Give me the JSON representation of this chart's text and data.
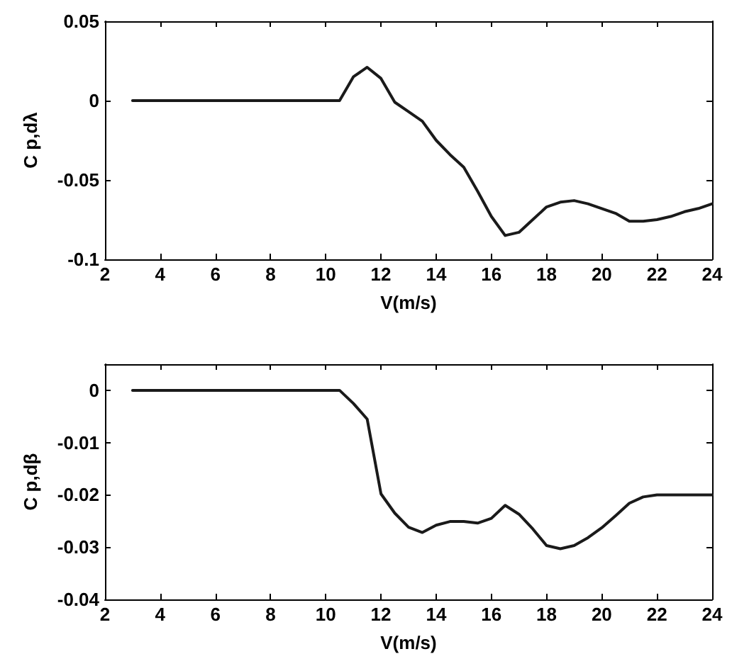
{
  "chart_data": [
    {
      "type": "line",
      "xlabel": "V(m/s)",
      "ylabel": "C p,dλ",
      "xlim": [
        2,
        24
      ],
      "xticks": [
        2,
        4,
        6,
        8,
        10,
        12,
        14,
        16,
        18,
        20,
        22,
        24
      ],
      "ylim": [
        -0.1,
        0.05
      ],
      "yticks": [
        -0.1,
        -0.05,
        0,
        0.05
      ],
      "grid": false,
      "marker": "none",
      "line_style": "solid",
      "x": [
        3,
        3.5,
        4,
        4.5,
        5,
        5.5,
        6,
        6.5,
        7,
        7.5,
        8,
        8.5,
        9,
        9.5,
        10,
        10.5,
        11,
        11.5,
        12,
        12.5,
        13,
        13.5,
        14,
        14.5,
        15,
        15.5,
        16,
        16.5,
        17,
        17.5,
        18,
        18.5,
        19,
        19.5,
        20,
        20.5,
        21,
        21.5,
        22,
        22.5,
        23,
        23.5,
        24
      ],
      "series": [
        {
          "color": "#1a1a1a",
          "values": [
            0,
            0,
            0,
            0,
            0,
            0,
            0,
            0,
            0,
            0,
            0,
            0,
            0,
            0,
            0,
            0,
            0.015,
            0.021,
            0.014,
            -0.001,
            -0.007,
            -0.013,
            -0.025,
            -0.034,
            -0.042,
            -0.057,
            -0.073,
            -0.085,
            -0.083,
            -0.075,
            -0.067,
            -0.064,
            -0.063,
            -0.065,
            -0.068,
            -0.071,
            -0.076,
            -0.076,
            -0.075,
            -0.073,
            -0.07,
            -0.068,
            -0.065
          ]
        }
      ]
    },
    {
      "type": "line",
      "xlabel": "V(m/s)",
      "ylabel": "C p,dβ",
      "xlim": [
        2,
        24
      ],
      "xticks": [
        2,
        4,
        6,
        8,
        10,
        12,
        14,
        16,
        18,
        20,
        22,
        24
      ],
      "ylim": [
        -0.04,
        0.005
      ],
      "yticks": [
        -0.04,
        -0.03,
        -0.02,
        -0.01,
        0
      ],
      "grid": false,
      "marker": "none",
      "line_style": "solid",
      "x": [
        3,
        3.5,
        4,
        4.5,
        5,
        5.5,
        6,
        6.5,
        7,
        7.5,
        8,
        8.5,
        9,
        9.5,
        10,
        10.5,
        11,
        11.5,
        12,
        12.5,
        13,
        13.5,
        14,
        14.5,
        15,
        15.5,
        16,
        16.5,
        17,
        17.5,
        18,
        18.5,
        19,
        19.5,
        20,
        20.5,
        21,
        21.5,
        22,
        22.5,
        23,
        23.5,
        24
      ],
      "series": [
        {
          "color": "#1a1a1a",
          "values": [
            0,
            0,
            0,
            0,
            0,
            0,
            0,
            0,
            0,
            0,
            0,
            0,
            0,
            0,
            0,
            0,
            -0.0025,
            -0.0055,
            -0.0198,
            -0.0235,
            -0.0262,
            -0.0272,
            -0.0258,
            -0.0251,
            -0.0251,
            -0.0254,
            -0.0245,
            -0.022,
            -0.0237,
            -0.0265,
            -0.0297,
            -0.0303,
            -0.0297,
            -0.0282,
            -0.0263,
            -0.024,
            -0.0216,
            -0.0204,
            -0.02,
            -0.02,
            -0.02,
            -0.02,
            -0.02
          ]
        }
      ]
    }
  ]
}
